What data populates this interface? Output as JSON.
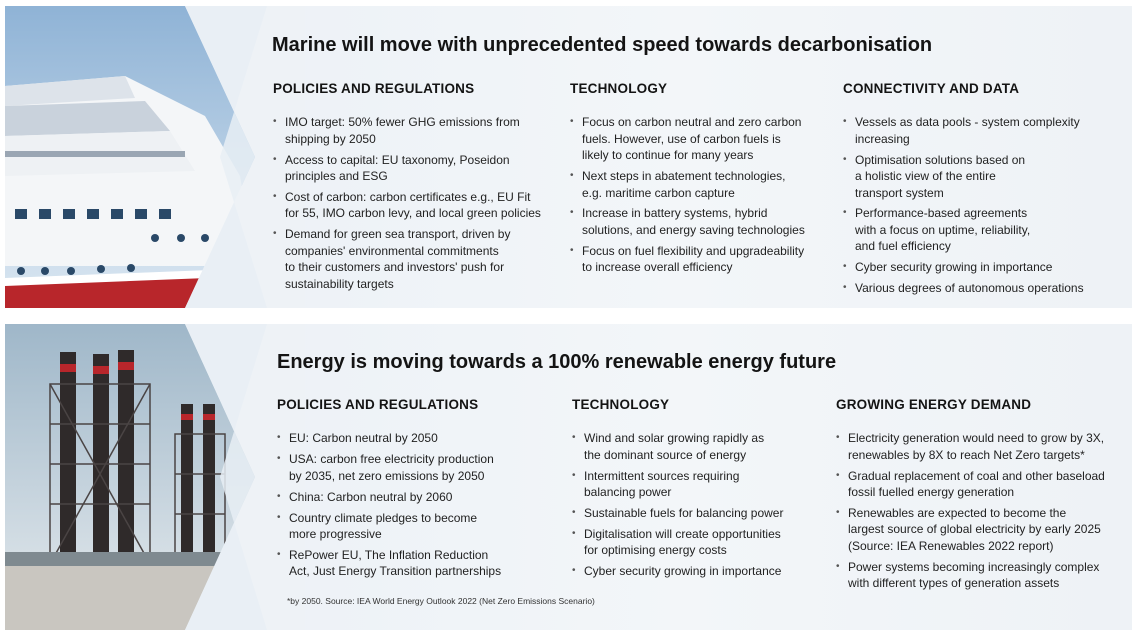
{
  "marine": {
    "title": "Marine will move with unprecedented speed towards decarbonisation",
    "columns": [
      {
        "heading": "POLICIES AND REGULATIONS",
        "items": [
          "IMO target: 50% fewer GHG emissions from\nshipping by 2050",
          "Access to capital: EU taxonomy, Poseidon\nprinciples and ESG",
          "Cost of carbon: carbon certificates e.g., EU Fit\nfor 55, IMO carbon levy, and local green policies",
          "Demand for green sea transport, driven by\ncompanies' environmental commitments\nto their customers and investors' push for\nsustainability targets"
        ]
      },
      {
        "heading": "TECHNOLOGY",
        "items": [
          "Focus on carbon neutral and zero carbon\nfuels. However, use of carbon fuels is\nlikely to continue for many years",
          "Next steps in abatement technologies,\ne.g. maritime carbon capture",
          "Increase in battery systems, hybrid\nsolutions, and energy saving technologies",
          "Focus on fuel flexibility and upgradeability\nto increase overall efficiency"
        ]
      },
      {
        "heading": "CONNECTIVITY AND DATA",
        "items": [
          "Vessels as data pools - system complexity\nincreasing",
          "Optimisation solutions based on\na holistic view of the entire\ntransport system",
          "Performance-based agreements\nwith a focus on uptime, reliability,\nand fuel efficiency",
          "Cyber security growing in importance",
          "Various degrees of autonomous operations"
        ]
      }
    ]
  },
  "energy": {
    "title": "Energy is moving towards a 100% renewable energy future",
    "columns": [
      {
        "heading": "POLICIES AND REGULATIONS",
        "items": [
          "EU: Carbon neutral by 2050",
          "USA: carbon free electricity production\nby 2035, net zero emissions by 2050",
          "China: Carbon neutral by 2060",
          "Country climate pledges to become\nmore progressive",
          "RePower EU, The Inflation Reduction\nAct, Just Energy Transition partnerships"
        ]
      },
      {
        "heading": "TECHNOLOGY",
        "items": [
          "Wind and solar growing rapidly as\nthe dominant source of energy",
          "Intermittent sources requiring\nbalancing power",
          "Sustainable fuels for balancing power",
          "Digitalisation will create opportunities\nfor optimising energy costs",
          "Cyber security growing in importance"
        ]
      },
      {
        "heading": "GROWING ENERGY DEMAND",
        "items": [
          "Electricity generation would need to grow by 3X,\nrenewables by 8X to reach Net Zero targets*",
          "Gradual replacement of coal and other baseload\nfossil fuelled energy generation",
          "Renewables are expected to become the\nlargest source of global electricity by early 2025\n(Source: IEA Renewables 2022 report)",
          "Power systems becoming increasingly complex\nwith different types of generation assets"
        ]
      }
    ],
    "footnote": "*by 2050. Source: IEA World Energy Outlook 2022 (Net Zero Emissions Scenario)"
  },
  "images": {
    "top_photo": "cruise-ship-photo",
    "bottom_photo": "power-plant-photo"
  },
  "colors": {
    "panel_bg": "#eef2f6",
    "title_text": "#141414",
    "ship_hull_red": "#b8262b",
    "chimney_dark": "#2f2a2a"
  }
}
